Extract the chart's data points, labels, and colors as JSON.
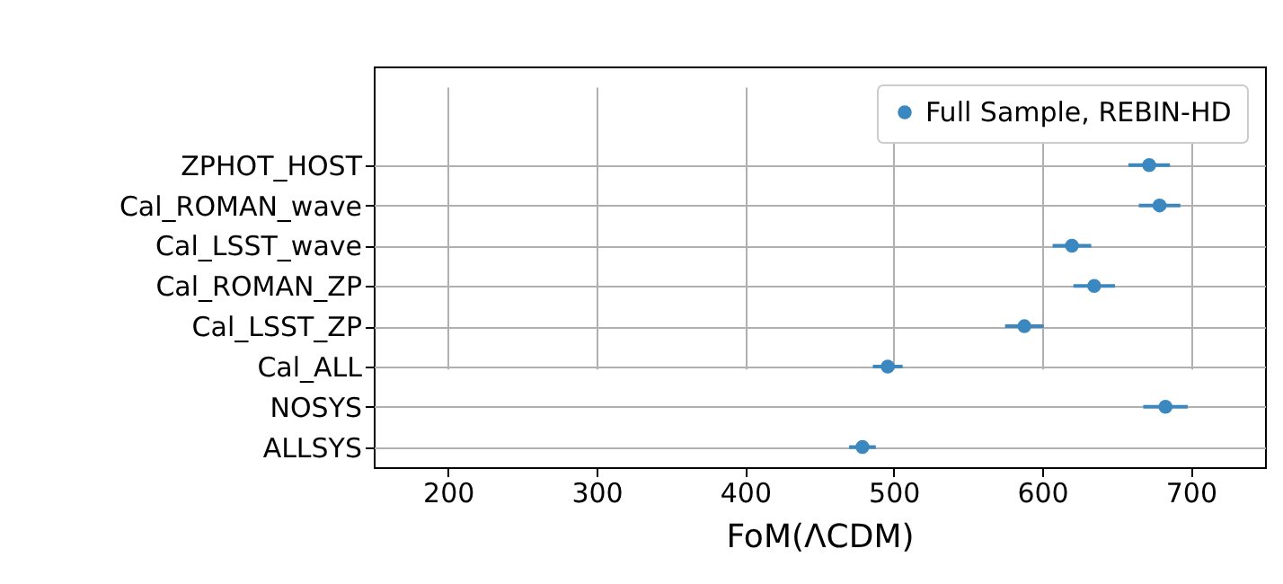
{
  "chart_data": {
    "type": "scatter",
    "orientation": "horizontal",
    "xlabel": "FoM(ΛCDM)",
    "categories": [
      "ZPHOT_HOST",
      "Cal_ROMAN_wave",
      "Cal_LSST_wave",
      "Cal_ROMAN_ZP",
      "Cal_LSST_ZP",
      "Cal_ALL",
      "NOSYS",
      "ALLSYS"
    ],
    "series": [
      {
        "name": "Full Sample, REBIN-HD",
        "color": "#3b87c0",
        "values": [
          672,
          679,
          620,
          635,
          588,
          496,
          683,
          479
        ],
        "errors": [
          14,
          14,
          13,
          14,
          13,
          10,
          15,
          9
        ]
      }
    ],
    "xlim": [
      150,
      750
    ],
    "xticks": [
      200,
      300,
      400,
      500,
      600,
      700
    ],
    "grid": true,
    "legend": "top right",
    "marker": "circle"
  }
}
